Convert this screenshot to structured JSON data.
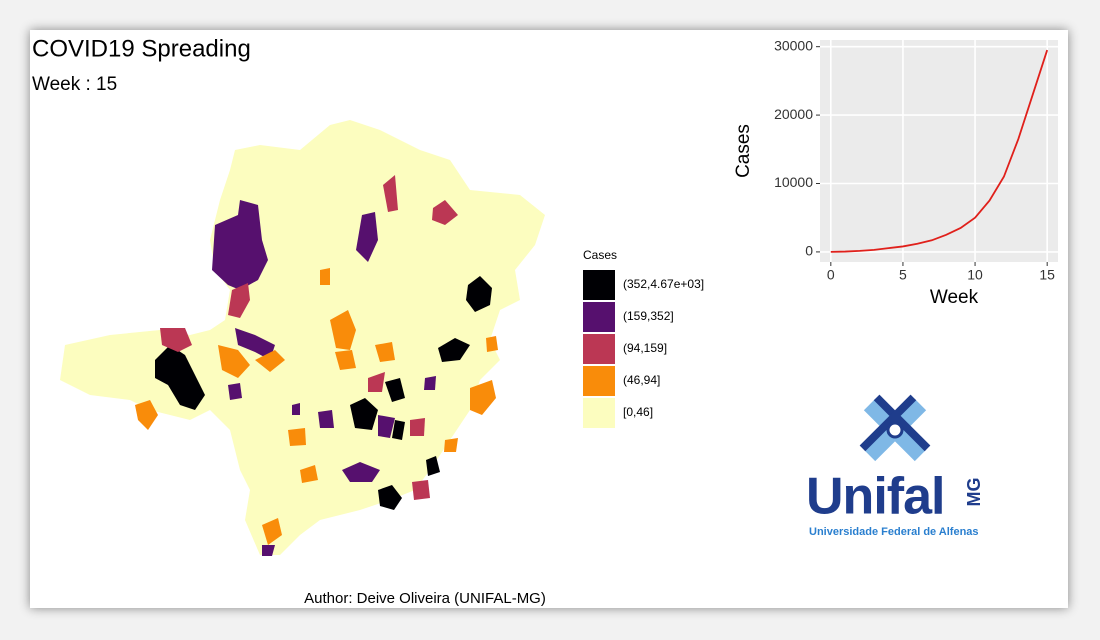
{
  "title": "COVID19 Spreading",
  "subtitle": "Week : 15",
  "map_legend": {
    "title": "Cases",
    "items": [
      {
        "label": "(352,4.67e+03]",
        "color": "#000004"
      },
      {
        "label": "(159,352]",
        "color": "#56106e"
      },
      {
        "label": "(94,159]",
        "color": "#bb3754"
      },
      {
        "label": "(46,94]",
        "color": "#f98c0a"
      },
      {
        "label": "[0,46]",
        "color": "#fcfdbf"
      }
    ]
  },
  "author": "Author: Deive Oliveira (UNIFAL-MG)",
  "logo": {
    "name": "Unifal",
    "state": "MG",
    "full_name": "Universidade Federal de Alfenas"
  },
  "chart_data": {
    "type": "line",
    "x_label": "Week",
    "y_label": "Cases",
    "x": [
      0,
      1,
      2,
      3,
      4,
      5,
      6,
      7,
      8,
      9,
      10,
      11,
      12,
      13,
      14,
      15
    ],
    "values": [
      0,
      50,
      150,
      300,
      550,
      800,
      1200,
      1700,
      2500,
      3500,
      5000,
      7500,
      11000,
      16500,
      23000,
      29500
    ],
    "color": "#e0201b",
    "xlim": [
      -0.75,
      15.75
    ],
    "xticks": [
      0,
      5,
      10,
      15
    ],
    "ylim": [
      -1475,
      30975
    ],
    "yticks": [
      0,
      10000,
      20000,
      30000
    ],
    "grid": true
  }
}
